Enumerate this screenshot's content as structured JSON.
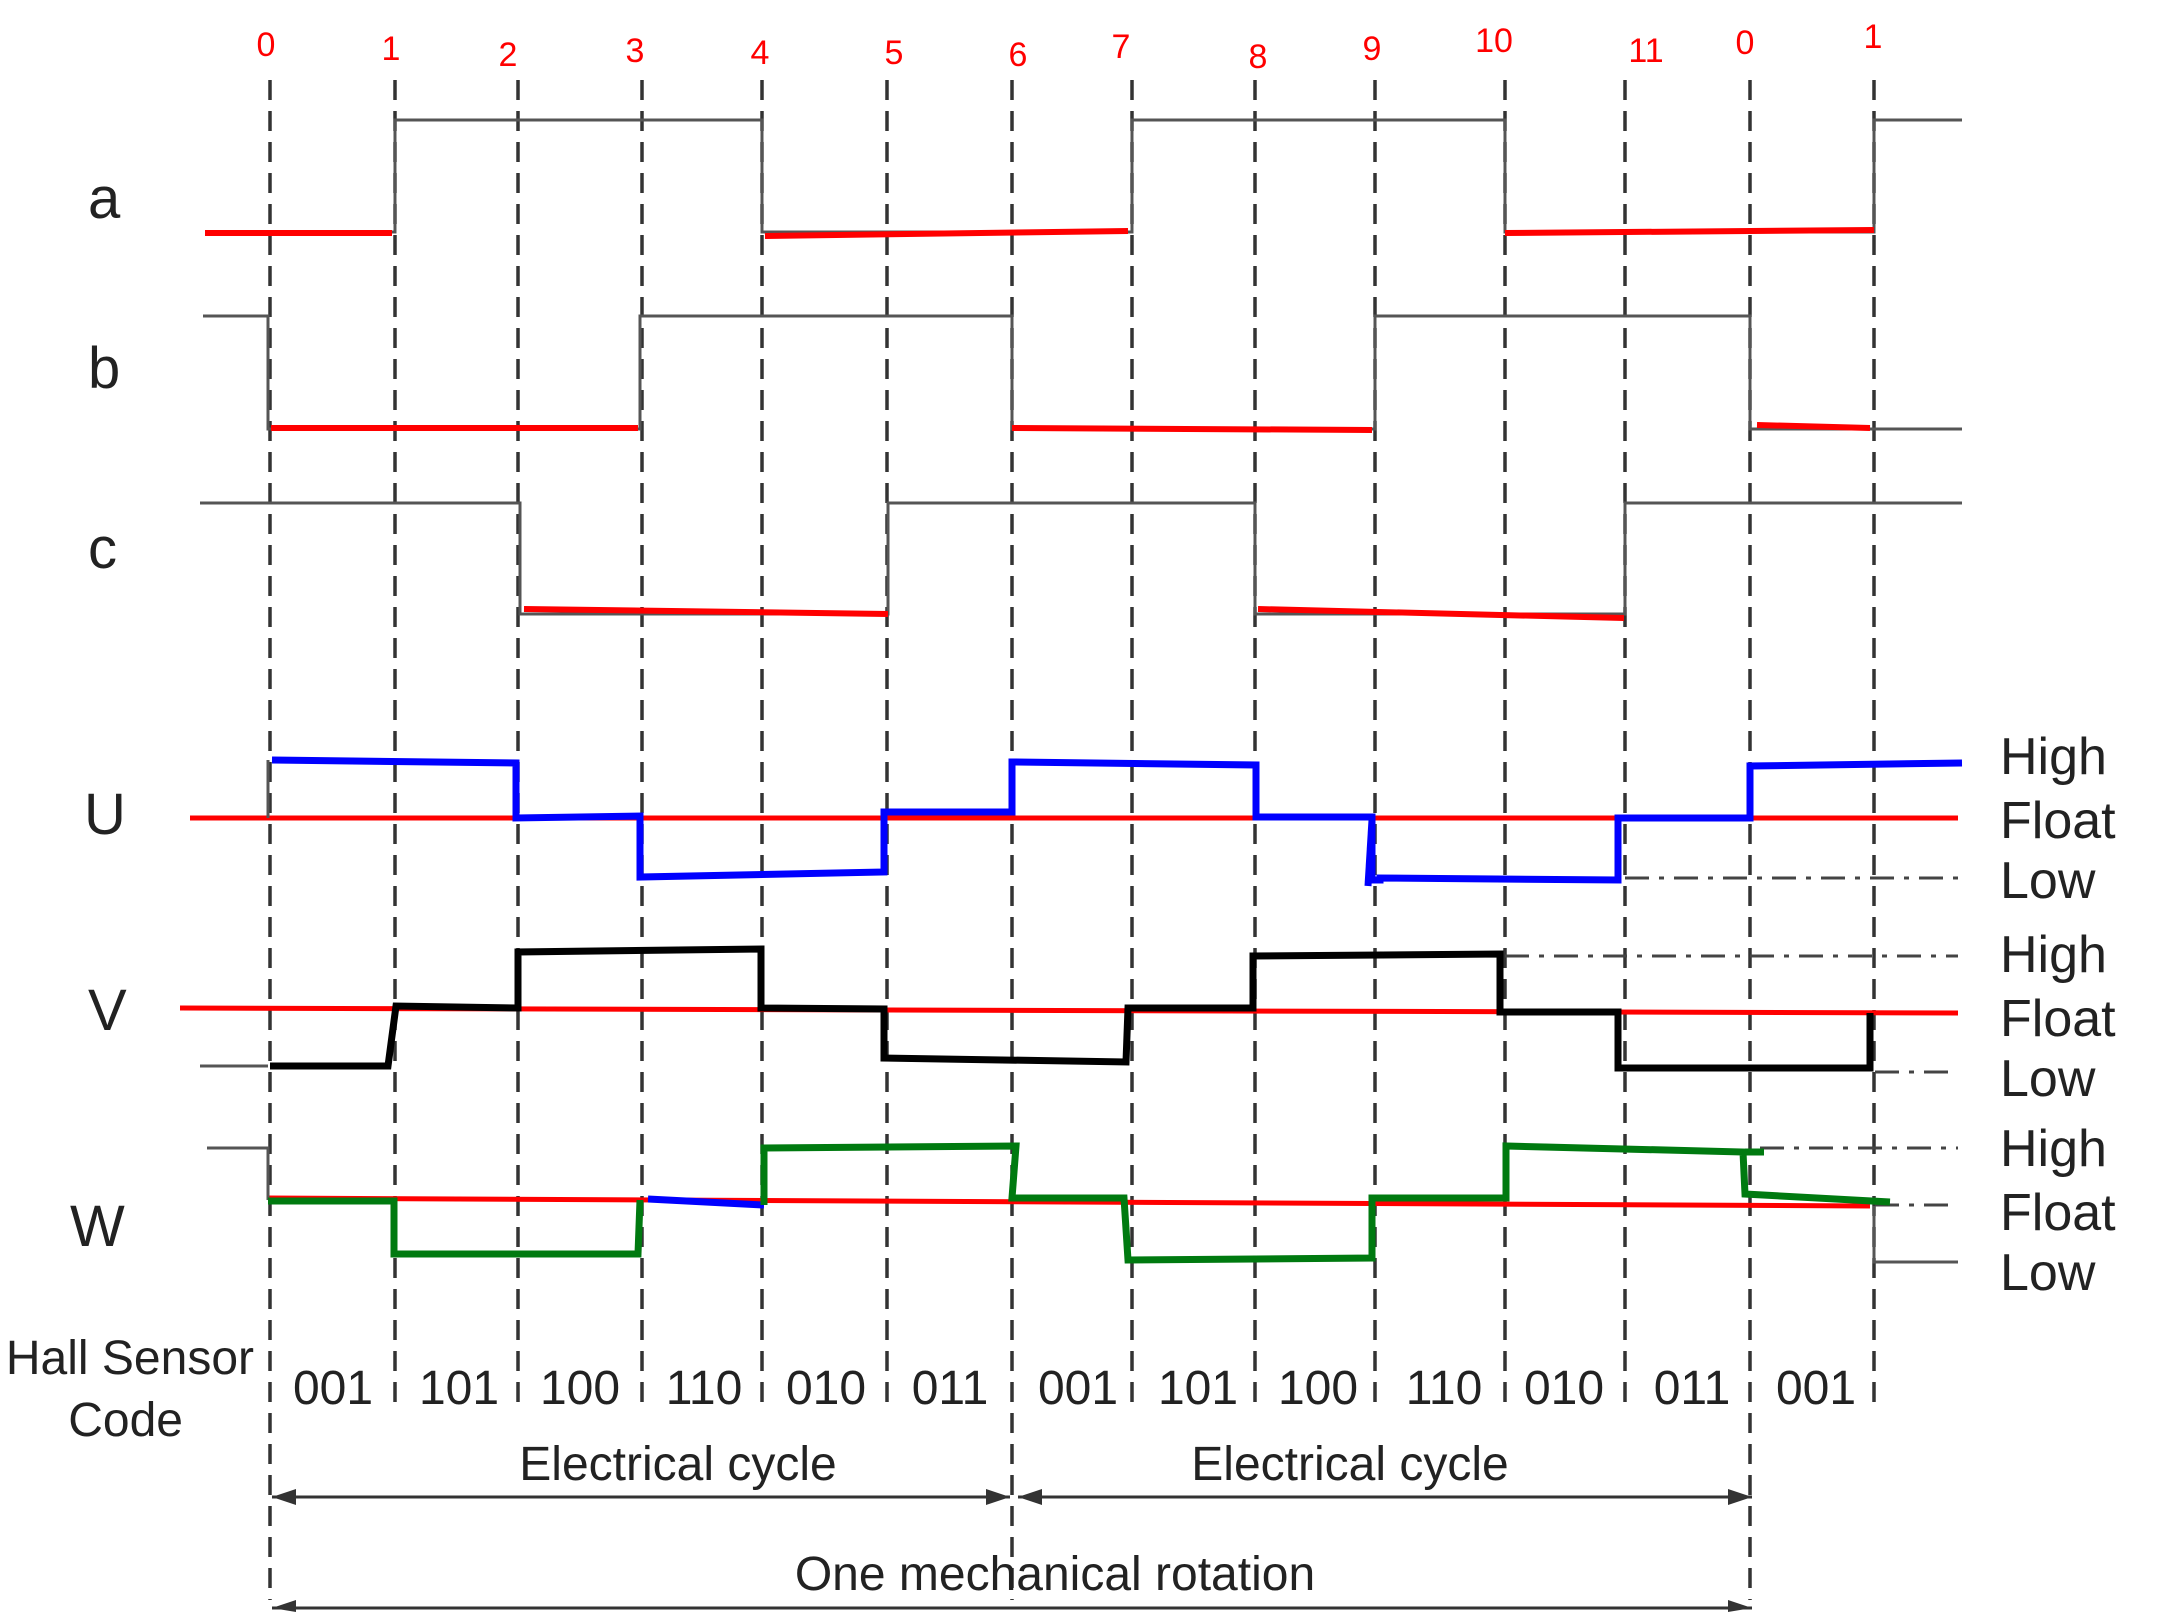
{
  "colors": {
    "reference": "#555555",
    "hall_highlight": "#ff0000",
    "u_phase": "#0000ff",
    "v_phase": "#000000",
    "w_phase": "#007a10",
    "step_numbers": "#ff0000"
  },
  "step_numbers": [
    "0",
    "1",
    "2",
    "3",
    "4",
    "5",
    "6",
    "7",
    "8",
    "9",
    "10",
    "11",
    "0",
    "1"
  ],
  "signals": {
    "a": "a",
    "b": "b",
    "c": "c",
    "u": "U",
    "v": "V",
    "w": "W"
  },
  "levels": {
    "u": [
      "High",
      "Float",
      "Low"
    ],
    "v": [
      "High",
      "Float",
      "Low"
    ],
    "w": [
      "High",
      "Float",
      "Low"
    ]
  },
  "hall": {
    "label_line1": "Hall Sensor",
    "label_line2": "Code",
    "codes": [
      "001",
      "101",
      "100",
      "110",
      "010",
      "011",
      "001",
      "101",
      "100",
      "110",
      "010",
      "011",
      "001"
    ]
  },
  "cycles": {
    "electrical_1": "Electrical cycle",
    "electrical_2": "Electrical cycle",
    "mechanical": "One mechanical rotation"
  },
  "hall_states": {
    "a": [
      0,
      1,
      1,
      1,
      0,
      0,
      0,
      1,
      1,
      1,
      0,
      0,
      0,
      1
    ],
    "b": [
      0,
      0,
      0,
      1,
      1,
      1,
      0,
      0,
      0,
      1,
      1,
      1,
      0,
      0
    ],
    "c": [
      1,
      1,
      0,
      0,
      0,
      1,
      1,
      1,
      0,
      0,
      0,
      1,
      1,
      1
    ]
  }
}
